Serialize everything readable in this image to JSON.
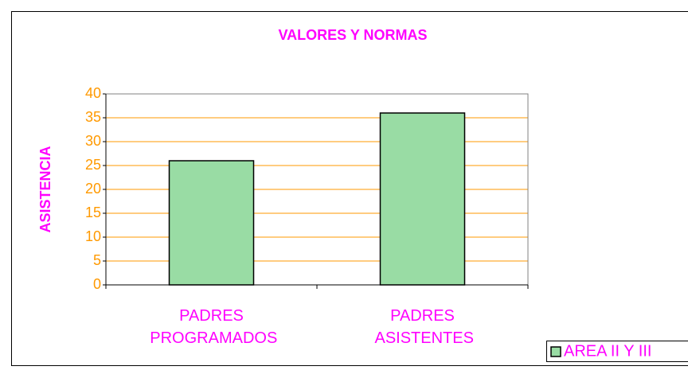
{
  "chart_data": {
    "type": "bar",
    "title": "VALORES Y NORMAS",
    "y_label": "ASISTENCIA",
    "categories": [
      "PADRES PROGRAMADOS",
      "PADRES ASISTENTES"
    ],
    "series": [
      {
        "name": "AREA II Y III",
        "color": "#99dca4",
        "values": [
          26,
          36
        ]
      }
    ],
    "ylim": [
      0,
      40
    ],
    "yticks": [
      0,
      5,
      10,
      15,
      20,
      25,
      30,
      35,
      40
    ],
    "grid": true,
    "legend": "bottom-right"
  }
}
